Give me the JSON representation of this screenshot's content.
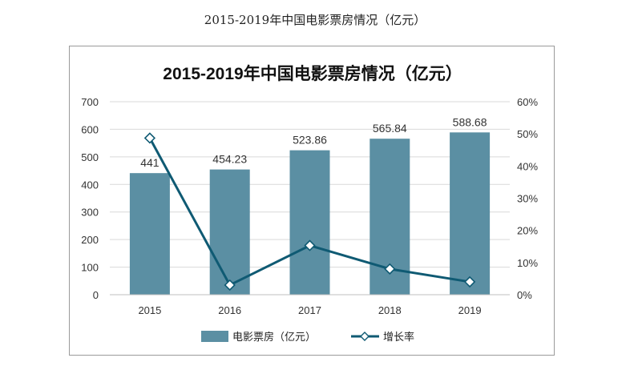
{
  "page_title": "2015-2019年中国电影票房情况（亿元）",
  "colors": {
    "bar": "#5b8fa3",
    "line": "#0f5a73",
    "grid": "#d9d9d9",
    "marker_fill": "#ffffff"
  },
  "chart_data": {
    "type": "bar",
    "title": "2015-2019年中国电影票房情况（亿元）",
    "categories": [
      "2015",
      "2016",
      "2017",
      "2018",
      "2019"
    ],
    "series": [
      {
        "name": "电影票房（亿元）",
        "type": "bar",
        "axis": "left",
        "values": [
          441,
          454.23,
          523.86,
          565.84,
          588.68
        ],
        "labels": [
          "441",
          "454.23",
          "523.86",
          "565.84",
          "588.68"
        ]
      },
      {
        "name": "增长率",
        "type": "line",
        "axis": "right",
        "values": [
          0.487,
          0.03,
          0.153,
          0.08,
          0.04
        ]
      }
    ],
    "y_left": {
      "min": 0,
      "max": 700,
      "ticks": [
        "0",
        "100",
        "200",
        "300",
        "400",
        "500",
        "600",
        "700"
      ]
    },
    "y_right": {
      "min": 0,
      "max": 0.6,
      "ticks": [
        "0%",
        "10%",
        "20%",
        "30%",
        "40%",
        "50%",
        "60%"
      ]
    },
    "grid": true,
    "legend_position": "bottom"
  }
}
